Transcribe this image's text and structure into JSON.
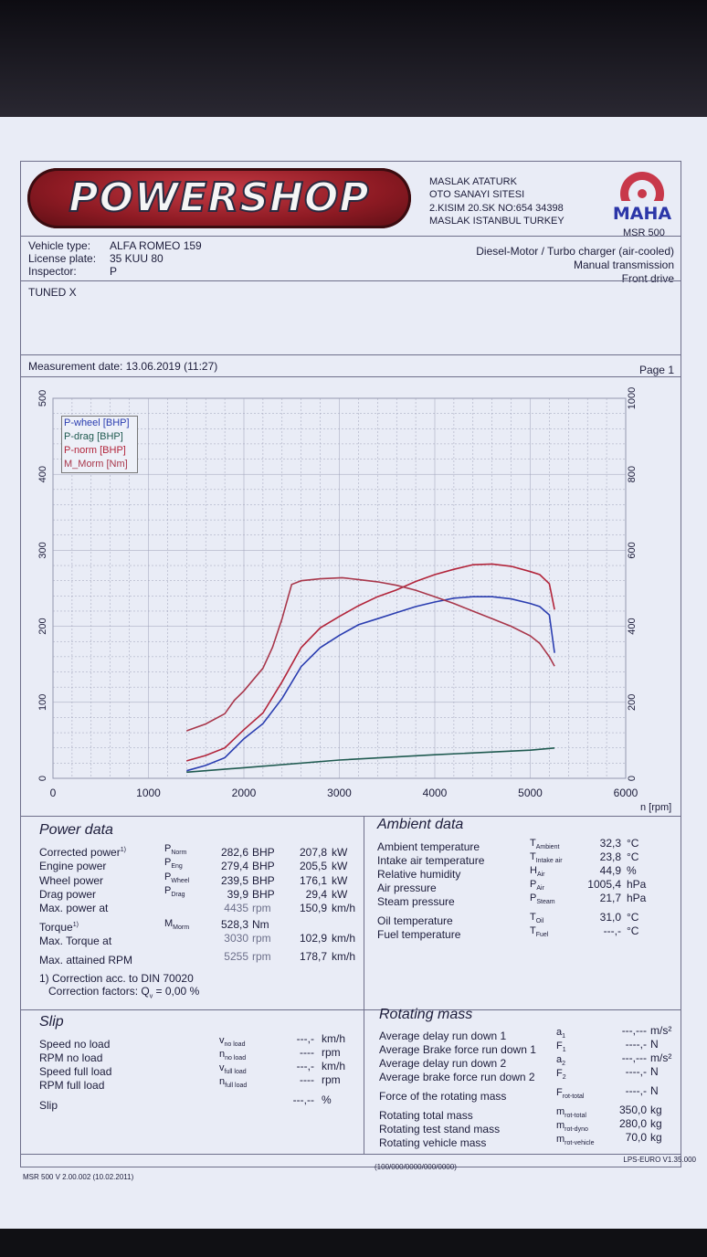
{
  "header": {
    "logo_text": "POWERSHOP",
    "address": [
      "MASLAK ATATURK",
      "OTO SANAYI SITESI",
      "2.KISIM 20.SK NO:654 34398",
      "MASLAK ISTANBUL TURKEY"
    ],
    "maha_logo": "MAHA",
    "model": "MSR 500"
  },
  "vehicle": {
    "type_label": "Vehicle type:",
    "type_value": "ALFA ROMEO 159",
    "plate_label": "License plate:",
    "plate_value": "35 KUU 80",
    "inspector_label": "Inspector:",
    "inspector_value": "P",
    "engine": "Diesel-Motor / Turbo charger (air-cooled)",
    "transmission": "Manual transmission",
    "drive": "Front drive",
    "remark": "TUNED X"
  },
  "measurement": {
    "date": "Measurement date: 13.06.2019 (11:27)",
    "page": "Page 1"
  },
  "chart_data": {
    "type": "line",
    "x_unit": "n [rpm]",
    "xlim": [
      0,
      6000
    ],
    "x_ticks": [
      "0",
      "1000",
      "2000",
      "3000",
      "4000",
      "5000",
      "6000"
    ],
    "y_left_ticks": [
      "0",
      "100",
      "200",
      "300",
      "400",
      "500"
    ],
    "ylim_left": [
      0,
      500
    ],
    "y_right_ticks": [
      "0",
      "200",
      "400",
      "600",
      "800",
      "1000"
    ],
    "ylim_right": [
      0,
      1000
    ],
    "legend": [
      "P-wheel [BHP]",
      "P-drag [BHP]",
      "P-norm [BHP]",
      "M_Morm [Nm]"
    ],
    "colors": {
      "wheel": "#2a3db0",
      "drag": "#1f5a50",
      "norm": "#b2243a",
      "torque": "#a8364a"
    },
    "series": [
      {
        "name": "P-wheel [BHP]",
        "axis": "left",
        "x": [
          1400,
          1600,
          1800,
          2000,
          2200,
          2400,
          2600,
          2800,
          3000,
          3200,
          3400,
          3600,
          3800,
          4000,
          4200,
          4400,
          4600,
          4800,
          5000,
          5100,
          5200,
          5255
        ],
        "y": [
          10,
          17,
          27,
          52,
          72,
          105,
          147,
          172,
          188,
          202,
          210,
          218,
          226,
          232,
          237,
          239,
          239,
          236,
          230,
          226,
          215,
          165
        ]
      },
      {
        "name": "P-drag [BHP]",
        "axis": "left",
        "x": [
          1400,
          2000,
          3000,
          4000,
          5000,
          5255
        ],
        "y": [
          8,
          14,
          24,
          31,
          37,
          39.9
        ]
      },
      {
        "name": "P-norm [BHP]",
        "axis": "left",
        "x": [
          1400,
          1600,
          1800,
          2000,
          2200,
          2400,
          2600,
          2800,
          3000,
          3200,
          3400,
          3600,
          3800,
          4000,
          4200,
          4400,
          4600,
          4800,
          5000,
          5100,
          5200,
          5255
        ],
        "y": [
          23,
          30,
          40,
          64,
          86,
          127,
          172,
          198,
          213,
          227,
          239,
          248,
          259,
          268,
          275,
          281,
          282,
          279,
          272,
          268,
          256,
          222
        ]
      },
      {
        "name": "M_Morm [Nm]",
        "axis": "right",
        "x": [
          1400,
          1600,
          1800,
          1900,
          2000,
          2200,
          2300,
          2400,
          2500,
          2600,
          2800,
          3030,
          3200,
          3400,
          3600,
          3800,
          4000,
          4200,
          4400,
          4600,
          4800,
          5000,
          5100,
          5200,
          5255
        ],
        "y": [
          125,
          143,
          170,
          205,
          230,
          290,
          345,
          420,
          510,
          520,
          525,
          528,
          523,
          517,
          508,
          495,
          478,
          460,
          440,
          420,
          400,
          375,
          355,
          320,
          295
        ]
      }
    ]
  },
  "power_data": {
    "title": "Power data",
    "rows": [
      {
        "label": "Corrected power",
        "sup": "1)",
        "sym": "P",
        "sub": "Norm",
        "v1": "282,6",
        "u1": "BHP",
        "v2": "207,8",
        "u2": "kW"
      },
      {
        "label": "Engine power",
        "sup": "",
        "sym": "P",
        "sub": "Eng",
        "v1": "279,4",
        "u1": "BHP",
        "v2": "205,5",
        "u2": "kW"
      },
      {
        "label": "Wheel power",
        "sup": "",
        "sym": "P",
        "sub": "Wheel",
        "v1": "239,5",
        "u1": "BHP",
        "v2": "176,1",
        "u2": "kW"
      },
      {
        "label": "Drag power",
        "sup": "",
        "sym": "P",
        "sub": "Drag",
        "v1": "39,9",
        "u1": "BHP",
        "v2": "29,4",
        "u2": "kW"
      },
      {
        "label": "Max. power at",
        "sup": "",
        "sym": "",
        "sub": "",
        "v1": "4435",
        "u1": "rpm",
        "v2": "150,9",
        "u2": "km/h"
      }
    ],
    "torque": {
      "label": "Torque",
      "sup": "1)",
      "sym": "M",
      "sub": "Morm",
      "v1": "528,3",
      "u1": "Nm"
    },
    "torque_at": {
      "label": "Max. Torque at",
      "v1": "3030",
      "u1": "rpm",
      "v2": "102,9",
      "u2": "km/h"
    },
    "max_rpm": {
      "label": "Max. attained RPM",
      "v1": "5255",
      "u1": "rpm",
      "v2": "178,7",
      "u2": "km/h"
    },
    "note1": "1) Correction acc. to DIN 70020",
    "note2": "Correction factors: Q",
    "note2_sub": "v",
    "note2_val": " =   0,00 %"
  },
  "ambient_data": {
    "title": "Ambient data",
    "rows": [
      {
        "label": "Ambient temperature",
        "sym": "T",
        "sub": "Ambient",
        "v": "32,3",
        "u": "°C"
      },
      {
        "label": "Intake air temperature",
        "sym": "T",
        "sub": "Intake air",
        "v": "23,8",
        "u": "°C"
      },
      {
        "label": "Relative humidity",
        "sym": "H",
        "sub": "Air",
        "v": "44,9",
        "u": "%"
      },
      {
        "label": "Air pressure",
        "sym": "P",
        "sub": "Air",
        "v": "1005,4",
        "u": "hPa"
      },
      {
        "label": "Steam pressure",
        "sym": "P",
        "sub": "Steam",
        "v": "21,7",
        "u": "hPa"
      },
      {
        "label": "Oil temperature",
        "sym": "T",
        "sub": "Oil",
        "v": "31,0",
        "u": "°C"
      },
      {
        "label": "Fuel temperature",
        "sym": "T",
        "sub": "Fuel",
        "v": "---,-",
        "u": "°C"
      }
    ]
  },
  "slip": {
    "title": "Slip",
    "rows": [
      {
        "label": "Speed no load",
        "sym": "v",
        "sub": "no load",
        "v": "---,-",
        "u": "km/h"
      },
      {
        "label": "RPM no load",
        "sym": "n",
        "sub": "no load",
        "v": "----",
        "u": "rpm"
      },
      {
        "label": "Speed full load",
        "sym": "v",
        "sub": "full load",
        "v": "---,-",
        "u": "km/h"
      },
      {
        "label": "RPM full load",
        "sym": "n",
        "sub": "full load",
        "v": "----",
        "u": "rpm"
      },
      {
        "label": "Slip",
        "sym": "",
        "sub": "",
        "v": "---,--",
        "u": "%"
      }
    ]
  },
  "rotating_mass": {
    "title": "Rotating mass",
    "rows": [
      {
        "label": "Average delay run down 1",
        "sym": "a",
        "sub": "1",
        "v": "---,---",
        "u": "m/s²"
      },
      {
        "label": "Average Brake force run down 1",
        "sym": "F",
        "sub": "1",
        "v": "----,-",
        "u": "N"
      },
      {
        "label": "Average delay run down 2",
        "sym": "a",
        "sub": "2",
        "v": "---,---",
        "u": "m/s²"
      },
      {
        "label": "Average brake force run down 2",
        "sym": "F",
        "sub": "2",
        "v": "----,-",
        "u": "N"
      },
      {
        "label": "Force of the rotating mass",
        "sym": "F",
        "sub": "rot-total",
        "v": "----,-",
        "u": "N"
      },
      {
        "label": "Rotating total mass",
        "sym": "m",
        "sub": "rot-total",
        "v": "350,0",
        "u": "kg"
      },
      {
        "label": "Rotating test stand mass",
        "sym": "m",
        "sub": "rot-dyno",
        "v": "280,0",
        "u": "kg"
      },
      {
        "label": "Rotating vehicle mass",
        "sym": "m",
        "sub": "rot-vehicle",
        "v": "70,0",
        "u": "kg"
      }
    ]
  },
  "footer": {
    "left": "MSR 500 V 2.00.002 (10.02.2011)",
    "mid": "(100/000/0000/000/0000)",
    "right": "LPS-EURO V1.35.000"
  }
}
